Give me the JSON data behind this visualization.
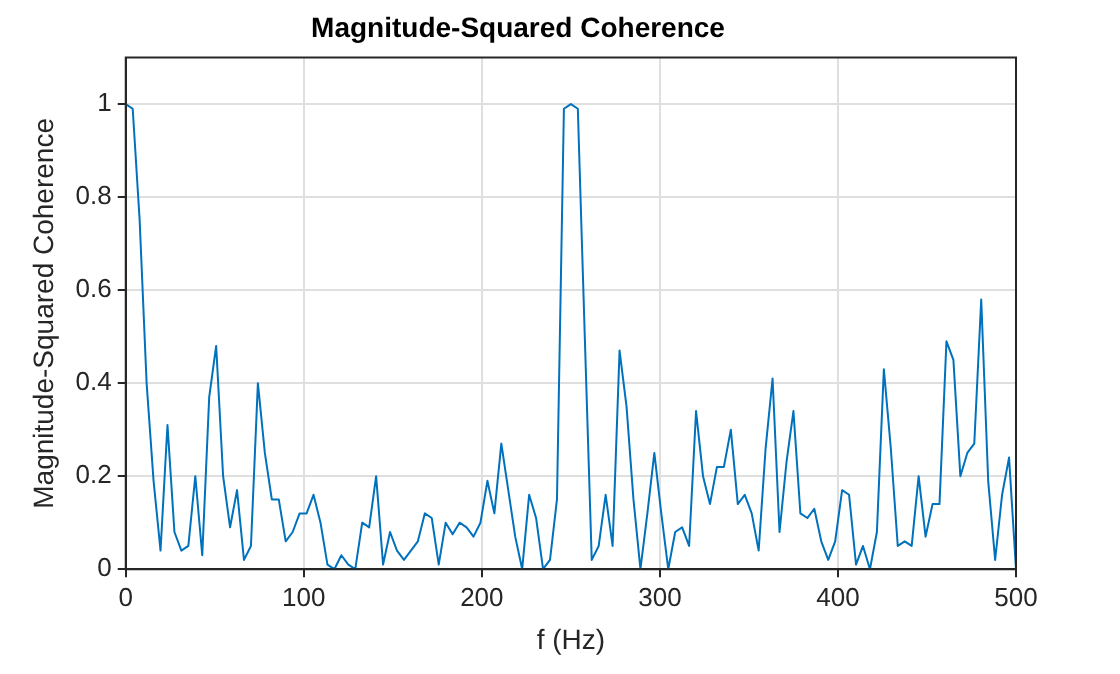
{
  "chart_data": {
    "type": "line",
    "title": "Magnitude-Squared Coherence",
    "xlabel": "f (Hz)",
    "ylabel": "Magnitude-Squared Coherence",
    "x": [
      0,
      3.90625,
      7.8125,
      11.71875,
      15.625,
      19.53125,
      23.4375,
      27.34375,
      31.25,
      35.15625,
      39.0625,
      42.96875,
      46.875,
      50.78125,
      54.6875,
      58.59375,
      62.5,
      66.40625,
      70.3125,
      74.21875,
      78.125,
      82.03125,
      85.9375,
      89.84375,
      93.75,
      97.65625,
      101.5625,
      105.46875,
      109.375,
      113.28125,
      117.1875,
      121.09375,
      125,
      128.90625,
      132.8125,
      136.71875,
      140.625,
      144.53125,
      148.4375,
      152.34375,
      156.25,
      160.15625,
      164.0625,
      167.96875,
      171.875,
      175.78125,
      179.6875,
      183.59375,
      187.5,
      191.40625,
      195.3125,
      199.21875,
      203.125,
      207.03125,
      210.9375,
      214.84375,
      218.75,
      222.65625,
      226.5625,
      230.46875,
      234.375,
      238.28125,
      242.1875,
      246.09375,
      250,
      253.90625,
      257.8125,
      261.71875,
      265.625,
      269.53125,
      273.4375,
      277.34375,
      281.25,
      285.15625,
      289.0625,
      292.96875,
      296.875,
      300.78125,
      304.6875,
      308.59375,
      312.5,
      316.40625,
      320.3125,
      324.21875,
      328.125,
      332.03125,
      335.9375,
      339.84375,
      343.75,
      347.65625,
      351.5625,
      355.46875,
      359.375,
      363.28125,
      367.1875,
      371.09375,
      375,
      378.90625,
      382.8125,
      386.71875,
      390.625,
      394.53125,
      398.4375,
      402.34375,
      406.25,
      410.15625,
      414.0625,
      417.96875,
      421.875,
      425.78125,
      429.6875,
      433.59375,
      437.5,
      441.40625,
      445.3125,
      449.21875,
      453.125,
      457.03125,
      460.9375,
      464.84375,
      468.75,
      472.65625,
      476.5625,
      480.46875,
      484.375,
      488.28125,
      492.1875,
      496.09375,
      500
    ],
    "series": [
      {
        "color": "#0072bd",
        "values": [
          1.0,
          0.99,
          0.75,
          0.4,
          0.19,
          0.04,
          0.31,
          0.08,
          0.04,
          0.05,
          0.2,
          0.03,
          0.37,
          0.48,
          0.2,
          0.09,
          0.17,
          0.02,
          0.05,
          0.4,
          0.25,
          0.15,
          0.15,
          0.06,
          0.08,
          0.12,
          0.12,
          0.16,
          0.1,
          0.01,
          0.0,
          0.03,
          0.01,
          0.0,
          0.1,
          0.09,
          0.2,
          0.01,
          0.08,
          0.04,
          0.02,
          0.04,
          0.06,
          0.12,
          0.11,
          0.01,
          0.1,
          0.075,
          0.1,
          0.09,
          0.07,
          0.1,
          0.19,
          0.12,
          0.27,
          0.17,
          0.07,
          0.0,
          0.16,
          0.11,
          0.0,
          0.02,
          0.15,
          0.99,
          1.0,
          0.99,
          0.5,
          0.02,
          0.05,
          0.16,
          0.05,
          0.47,
          0.35,
          0.15,
          0.0,
          0.12,
          0.25,
          0.12,
          0.0,
          0.08,
          0.09,
          0.05,
          0.34,
          0.2,
          0.14,
          0.22,
          0.22,
          0.3,
          0.14,
          0.16,
          0.12,
          0.04,
          0.26,
          0.41,
          0.08,
          0.23,
          0.34,
          0.12,
          0.11,
          0.13,
          0.06,
          0.02,
          0.06,
          0.17,
          0.16,
          0.01,
          0.05,
          0.0,
          0.08,
          0.43,
          0.26,
          0.05,
          0.06,
          0.05,
          0.2,
          0.07,
          0.14,
          0.14,
          0.49,
          0.45,
          0.2,
          0.25,
          0.27,
          0.58,
          0.19,
          0.02,
          0.16,
          0.24,
          0.0
        ]
      }
    ],
    "xlim": [
      0,
      500
    ],
    "xticks": [
      0,
      100,
      200,
      300,
      400,
      500
    ],
    "ylim": [
      0,
      1.1
    ],
    "yticks": [
      0,
      0.2,
      0.4,
      0.6,
      0.8,
      1
    ],
    "grid": true,
    "legend": false,
    "marker": "none",
    "line_style": "solid"
  }
}
